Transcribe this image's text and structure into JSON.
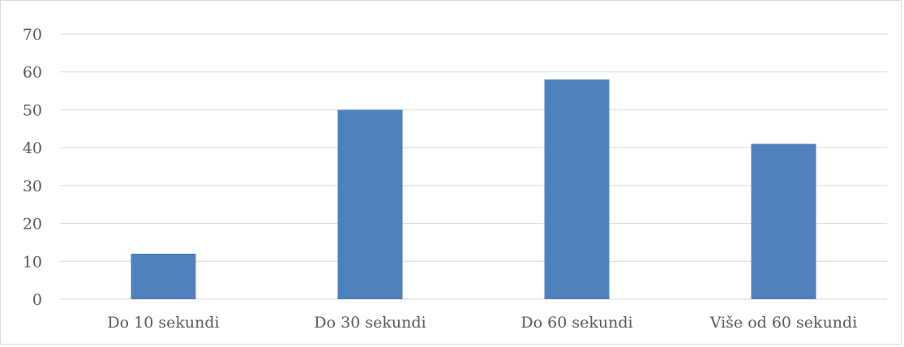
{
  "chart_data": {
    "type": "bar",
    "categories": [
      "Do 10 sekundi",
      "Do 30 sekundi",
      "Do 60 sekundi",
      "Više od 60 sekundi"
    ],
    "values": [
      12,
      50,
      58,
      41
    ],
    "ylim": [
      0,
      70
    ],
    "yticks": [
      0,
      10,
      20,
      30,
      40,
      50,
      60,
      70
    ],
    "title": "",
    "xlabel": "",
    "ylabel": "",
    "grid": true,
    "legend": "none",
    "bar_color": "#4f81bd",
    "grid_color": "#d9d9d9"
  }
}
